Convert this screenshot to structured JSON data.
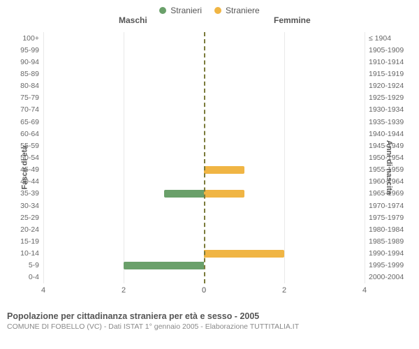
{
  "legend": {
    "male": {
      "label": "Stranieri",
      "color": "#6aa06a"
    },
    "female": {
      "label": "Straniere",
      "color": "#f0b544"
    }
  },
  "headers": {
    "male": "Maschi",
    "female": "Femmine"
  },
  "axis_titles": {
    "left": "Fasce di età",
    "right": "Anni di nascita"
  },
  "chart": {
    "type": "population-pyramid",
    "x_max": 4,
    "x_ticks": [
      4,
      2,
      0,
      0,
      2,
      4
    ],
    "grid_positions": [
      0,
      2,
      4
    ],
    "bar_color_male": "#6aa06a",
    "bar_color_female": "#f0b544",
    "background_color": "#ffffff",
    "grid_color": "#e9e9e9",
    "center_line_color": "#7a7a3a",
    "label_fontsize": 10.5,
    "tick_fontsize": 11,
    "rows": [
      {
        "age": "100+",
        "birth": "≤ 1904",
        "m": 0,
        "f": 0
      },
      {
        "age": "95-99",
        "birth": "1905-1909",
        "m": 0,
        "f": 0
      },
      {
        "age": "90-94",
        "birth": "1910-1914",
        "m": 0,
        "f": 0
      },
      {
        "age": "85-89",
        "birth": "1915-1919",
        "m": 0,
        "f": 0
      },
      {
        "age": "80-84",
        "birth": "1920-1924",
        "m": 0,
        "f": 0
      },
      {
        "age": "75-79",
        "birth": "1925-1929",
        "m": 0,
        "f": 0
      },
      {
        "age": "70-74",
        "birth": "1930-1934",
        "m": 0,
        "f": 0
      },
      {
        "age": "65-69",
        "birth": "1935-1939",
        "m": 0,
        "f": 0
      },
      {
        "age": "60-64",
        "birth": "1940-1944",
        "m": 0,
        "f": 0
      },
      {
        "age": "55-59",
        "birth": "1945-1949",
        "m": 0,
        "f": 0
      },
      {
        "age": "50-54",
        "birth": "1950-1954",
        "m": 0,
        "f": 0
      },
      {
        "age": "45-49",
        "birth": "1955-1959",
        "m": 0,
        "f": 1
      },
      {
        "age": "40-44",
        "birth": "1960-1964",
        "m": 0,
        "f": 0
      },
      {
        "age": "35-39",
        "birth": "1965-1969",
        "m": 1,
        "f": 1
      },
      {
        "age": "30-34",
        "birth": "1970-1974",
        "m": 0,
        "f": 0
      },
      {
        "age": "25-29",
        "birth": "1975-1979",
        "m": 0,
        "f": 0
      },
      {
        "age": "20-24",
        "birth": "1980-1984",
        "m": 0,
        "f": 0
      },
      {
        "age": "15-19",
        "birth": "1985-1989",
        "m": 0,
        "f": 0
      },
      {
        "age": "10-14",
        "birth": "1990-1994",
        "m": 0,
        "f": 2
      },
      {
        "age": "5-9",
        "birth": "1995-1999",
        "m": 2,
        "f": 0
      },
      {
        "age": "0-4",
        "birth": "2000-2004",
        "m": 0,
        "f": 0
      }
    ]
  },
  "caption": {
    "title": "Popolazione per cittadinanza straniera per età e sesso - 2005",
    "sub": "COMUNE DI FOBELLO (VC) - Dati ISTAT 1° gennaio 2005 - Elaborazione TUTTITALIA.IT"
  }
}
